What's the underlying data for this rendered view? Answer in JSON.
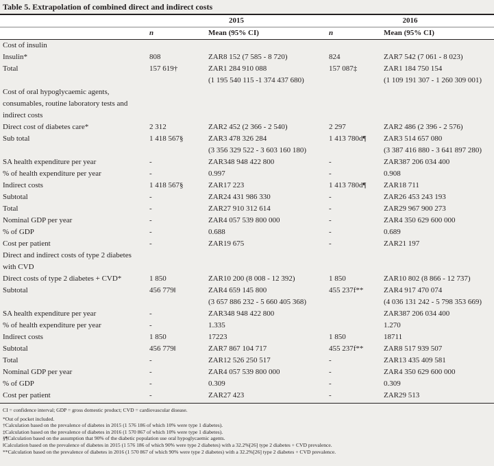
{
  "title": "Table 5. Extrapolation of combined direct and indirect costs",
  "years": [
    "2015",
    "2016"
  ],
  "columns": [
    "n",
    "Mean (95% CI)",
    "n",
    "Mean (95% CI)"
  ],
  "rows": [
    "Cost of insulin",
    [
      "Insulin*",
      "808",
      "ZAR8 152 (7 585 - 8 720)",
      "824",
      "ZAR7 542 (7 061 - 8 023)"
    ],
    [
      "Total",
      "157 619†",
      [
        "ZAR1 284 910 088",
        "(1 195 540 115 -1 374 437 680)"
      ],
      "157 087‡",
      [
        "ZAR1 184 750 154",
        "(1 109 191 307 - 1 260 309 001)"
      ]
    ],
    "Cost of oral hypoglycaemic agents, consumables, routine laboratory tests and indirect costs",
    [
      "Direct cost of diabetes care*",
      "2 312",
      "ZAR2 452 (2 366 - 2 540)",
      "2 297",
      "ZAR2 486 (2 396 - 2 576)"
    ],
    [
      "Sub total",
      "1 418 567§",
      [
        "ZAR3 478 326 284",
        "(3 356 329 522 - 3 603 160 180)"
      ],
      "1 413 780d¶",
      [
        "ZAR3 514 657 080",
        "(3 387 416 880 - 3 641 897 280)"
      ]
    ],
    [
      "SA health expenditure per year",
      "-",
      "ZAR348 948 422 800",
      "-",
      "ZAR387 206 034 400"
    ],
    [
      "% of health expenditure per year",
      "-",
      "0.997",
      "-",
      "0.908"
    ],
    [
      "Indirect costs",
      "1 418 567§",
      "ZAR17 223",
      "1 413 780d¶",
      "ZAR18 711"
    ],
    [
      "Subtotal",
      "-",
      "ZAR24 431 986 330",
      "-",
      "ZAR26 453 243 193"
    ],
    [
      "Total",
      "-",
      "ZAR27 910 312 614",
      "-",
      "ZAR29 967 900 273"
    ],
    [
      "Nominal GDP per year",
      "-",
      "ZAR4 057 539 800 000",
      "-",
      "ZAR4 350 629 600 000"
    ],
    [
      "% of GDP",
      "-",
      "0.688",
      "-",
      "0.689"
    ],
    [
      "Cost per patient",
      "-",
      "ZAR19 675",
      "-",
      "ZAR21 197"
    ],
    "Direct and indirect costs of type 2 diabetes with CVD",
    [
      "Direct costs of type 2 diabetes + CVD*",
      "1 850",
      "ZAR10 200 (8 008 - 12 392)",
      "1 850",
      "ZAR10 802 (8 866 - 12 737)"
    ],
    [
      "Subtotal",
      "456 779‖",
      [
        "ZAR4 659 145 800",
        "(3 657 886 232 - 5 660 405 368)"
      ],
      "455 237f**",
      [
        "ZAR4 917 470 074",
        "(4 036 131 242 - 5 798 353 669)"
      ]
    ],
    [
      "SA health expenditure per year",
      "-",
      "ZAR348 948 422 800",
      null,
      "ZAR387 206 034 400"
    ],
    [
      "% of health expenditure per year",
      "-",
      "1.335",
      null,
      "1.270"
    ],
    [
      "Indirect costs",
      "1 850",
      "17223",
      "1 850",
      "18711"
    ],
    [
      "Subtotal",
      "456 779‖",
      "ZAR7 867 104 717",
      "455 237f**",
      "ZAR8 517 939 507"
    ],
    [
      "Total",
      "-",
      "ZAR12 526 250 517",
      "-",
      "ZAR13 435 409 581"
    ],
    [
      "Nominal GDP per year",
      "-",
      "ZAR4 057 539 800 000",
      "-",
      "ZAR4 350 629 600 000"
    ],
    [
      "% of GDP",
      "-",
      "0.309",
      "-",
      "0.309"
    ],
    [
      "Cost per patient",
      "-",
      "ZAR27 423",
      "-",
      "ZAR29 513"
    ]
  ],
  "footnotes": [
    "CI = confidence interval; GDP = gross domestic product; CVD = cardiovascular disease.",
    "*Out of pocket included.",
    "†Calculation based on the prevalence of diabetes in 2015 (1 576 186 of which 10% were type 1 diabetes).",
    "‡Calculation based on the prevalence of diabetes in 2016 (1 570 867 of which 10% were type 1 diabetes).",
    "§¶Calculation based on the assumption that 90% of the diabetic population use oral hypoglycaemic agents.",
    "‖Calculation based on the prevalence of diabetes in 2015 (1 576 186 of which 90% were type 2 diabetes) with a 32.2%[26] type 2 diabetes + CVD prevalence.",
    "**Calculation based on the prevalence of diabetes in 2016 (1 570 867 of which 90% were type 2 diabetes) with a 32.2%[26] type 2 diabetes + CVD prevalence."
  ]
}
